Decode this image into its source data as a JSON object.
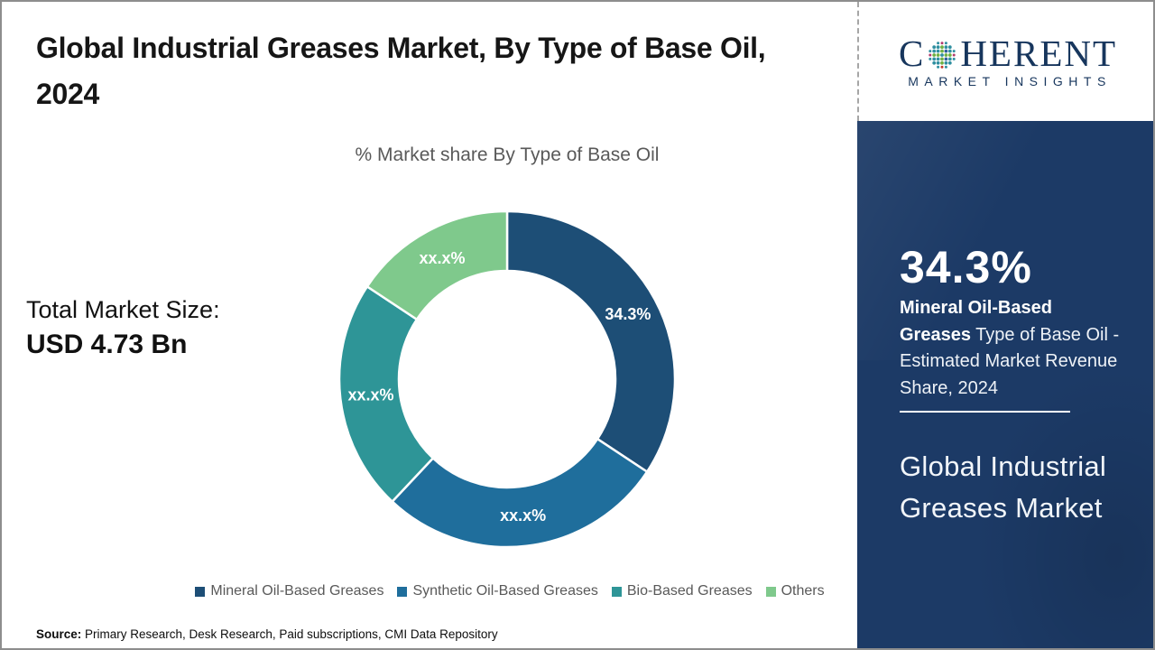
{
  "title": "Global Industrial Greases Market, By Type of Base Oil, 2024",
  "logo": {
    "prefix": "C",
    "suffix": "HERENT",
    "tagline": "MARKET INSIGHTS",
    "text_color": "#17365d",
    "globe_colors": [
      "#b23a6d",
      "#2f8fa0",
      "#6fb043",
      "#2f5f9e",
      "#c0392b"
    ]
  },
  "total_market": {
    "label": "Total Market Size:",
    "value": "USD 4.73 Bn"
  },
  "chart_data": {
    "type": "pie",
    "donut": true,
    "title": "% Market share By Type of Base Oil",
    "categories": [
      "Mineral Oil-Based Greases",
      "Synthetic Oil-Based Greases",
      "Bio-Based Greases",
      "Others"
    ],
    "labels": [
      "34.3%",
      "xx.x%",
      "xx.x%",
      "xx.x%"
    ],
    "values": [
      34.3,
      27.7,
      22.3,
      15.7
    ],
    "colors": [
      "#1d4e76",
      "#1f6e9c",
      "#2e9597",
      "#7fc98c"
    ],
    "start_angle_deg": 0,
    "direction": "clockwise",
    "legend_position": "bottom"
  },
  "sidebar": {
    "bg_color": "#1c3a66",
    "stat_value": "34.3%",
    "desc_bold": "Mineral Oil-Based Greases",
    "desc_rest": " Type of Base Oil - Estimated Market Revenue Share, 2024",
    "market_name": "Global Industrial Greases Market"
  },
  "source": {
    "label": "Source:",
    "text": " Primary Research, Desk Research, Paid subscriptions, CMI Data Repository"
  }
}
